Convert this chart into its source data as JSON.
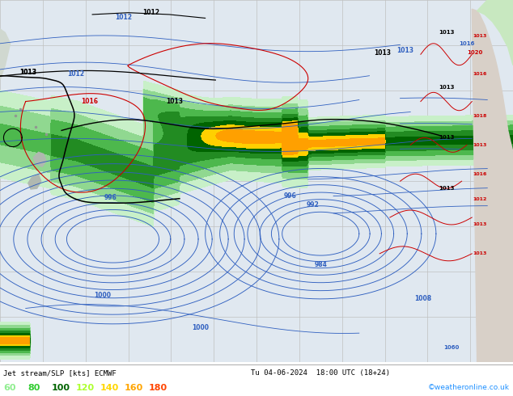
{
  "title": "Jet stream/SLP [kts] ECMWF",
  "date_label": "Tu 04-06-2024  18:00 UTC (18+24)",
  "copyright": "©weatheronline.co.uk",
  "legend_values": [
    "60",
    "80",
    "100",
    "120",
    "140",
    "160",
    "180"
  ],
  "legend_colors": [
    "#90ee90",
    "#32cd32",
    "#008000",
    "#adff2f",
    "#ffd700",
    "#ffa500",
    "#ff4500"
  ],
  "map_bg": "#e8e8e8",
  "grid_color": "#b0b0b0",
  "figsize": [
    6.34,
    4.9
  ],
  "dpi": 100,
  "watermark_color": "#1e90ff",
  "jet_fill_colors": [
    "#d4f5d4",
    "#a8e6a8",
    "#5dbb5d",
    "#2e8b2e",
    "#006400",
    "#ffd700",
    "#ffa500"
  ],
  "jet_fill_levels": [
    0.08,
    0.18,
    0.32,
    0.5,
    0.68,
    0.82,
    0.92,
    1.0
  ]
}
